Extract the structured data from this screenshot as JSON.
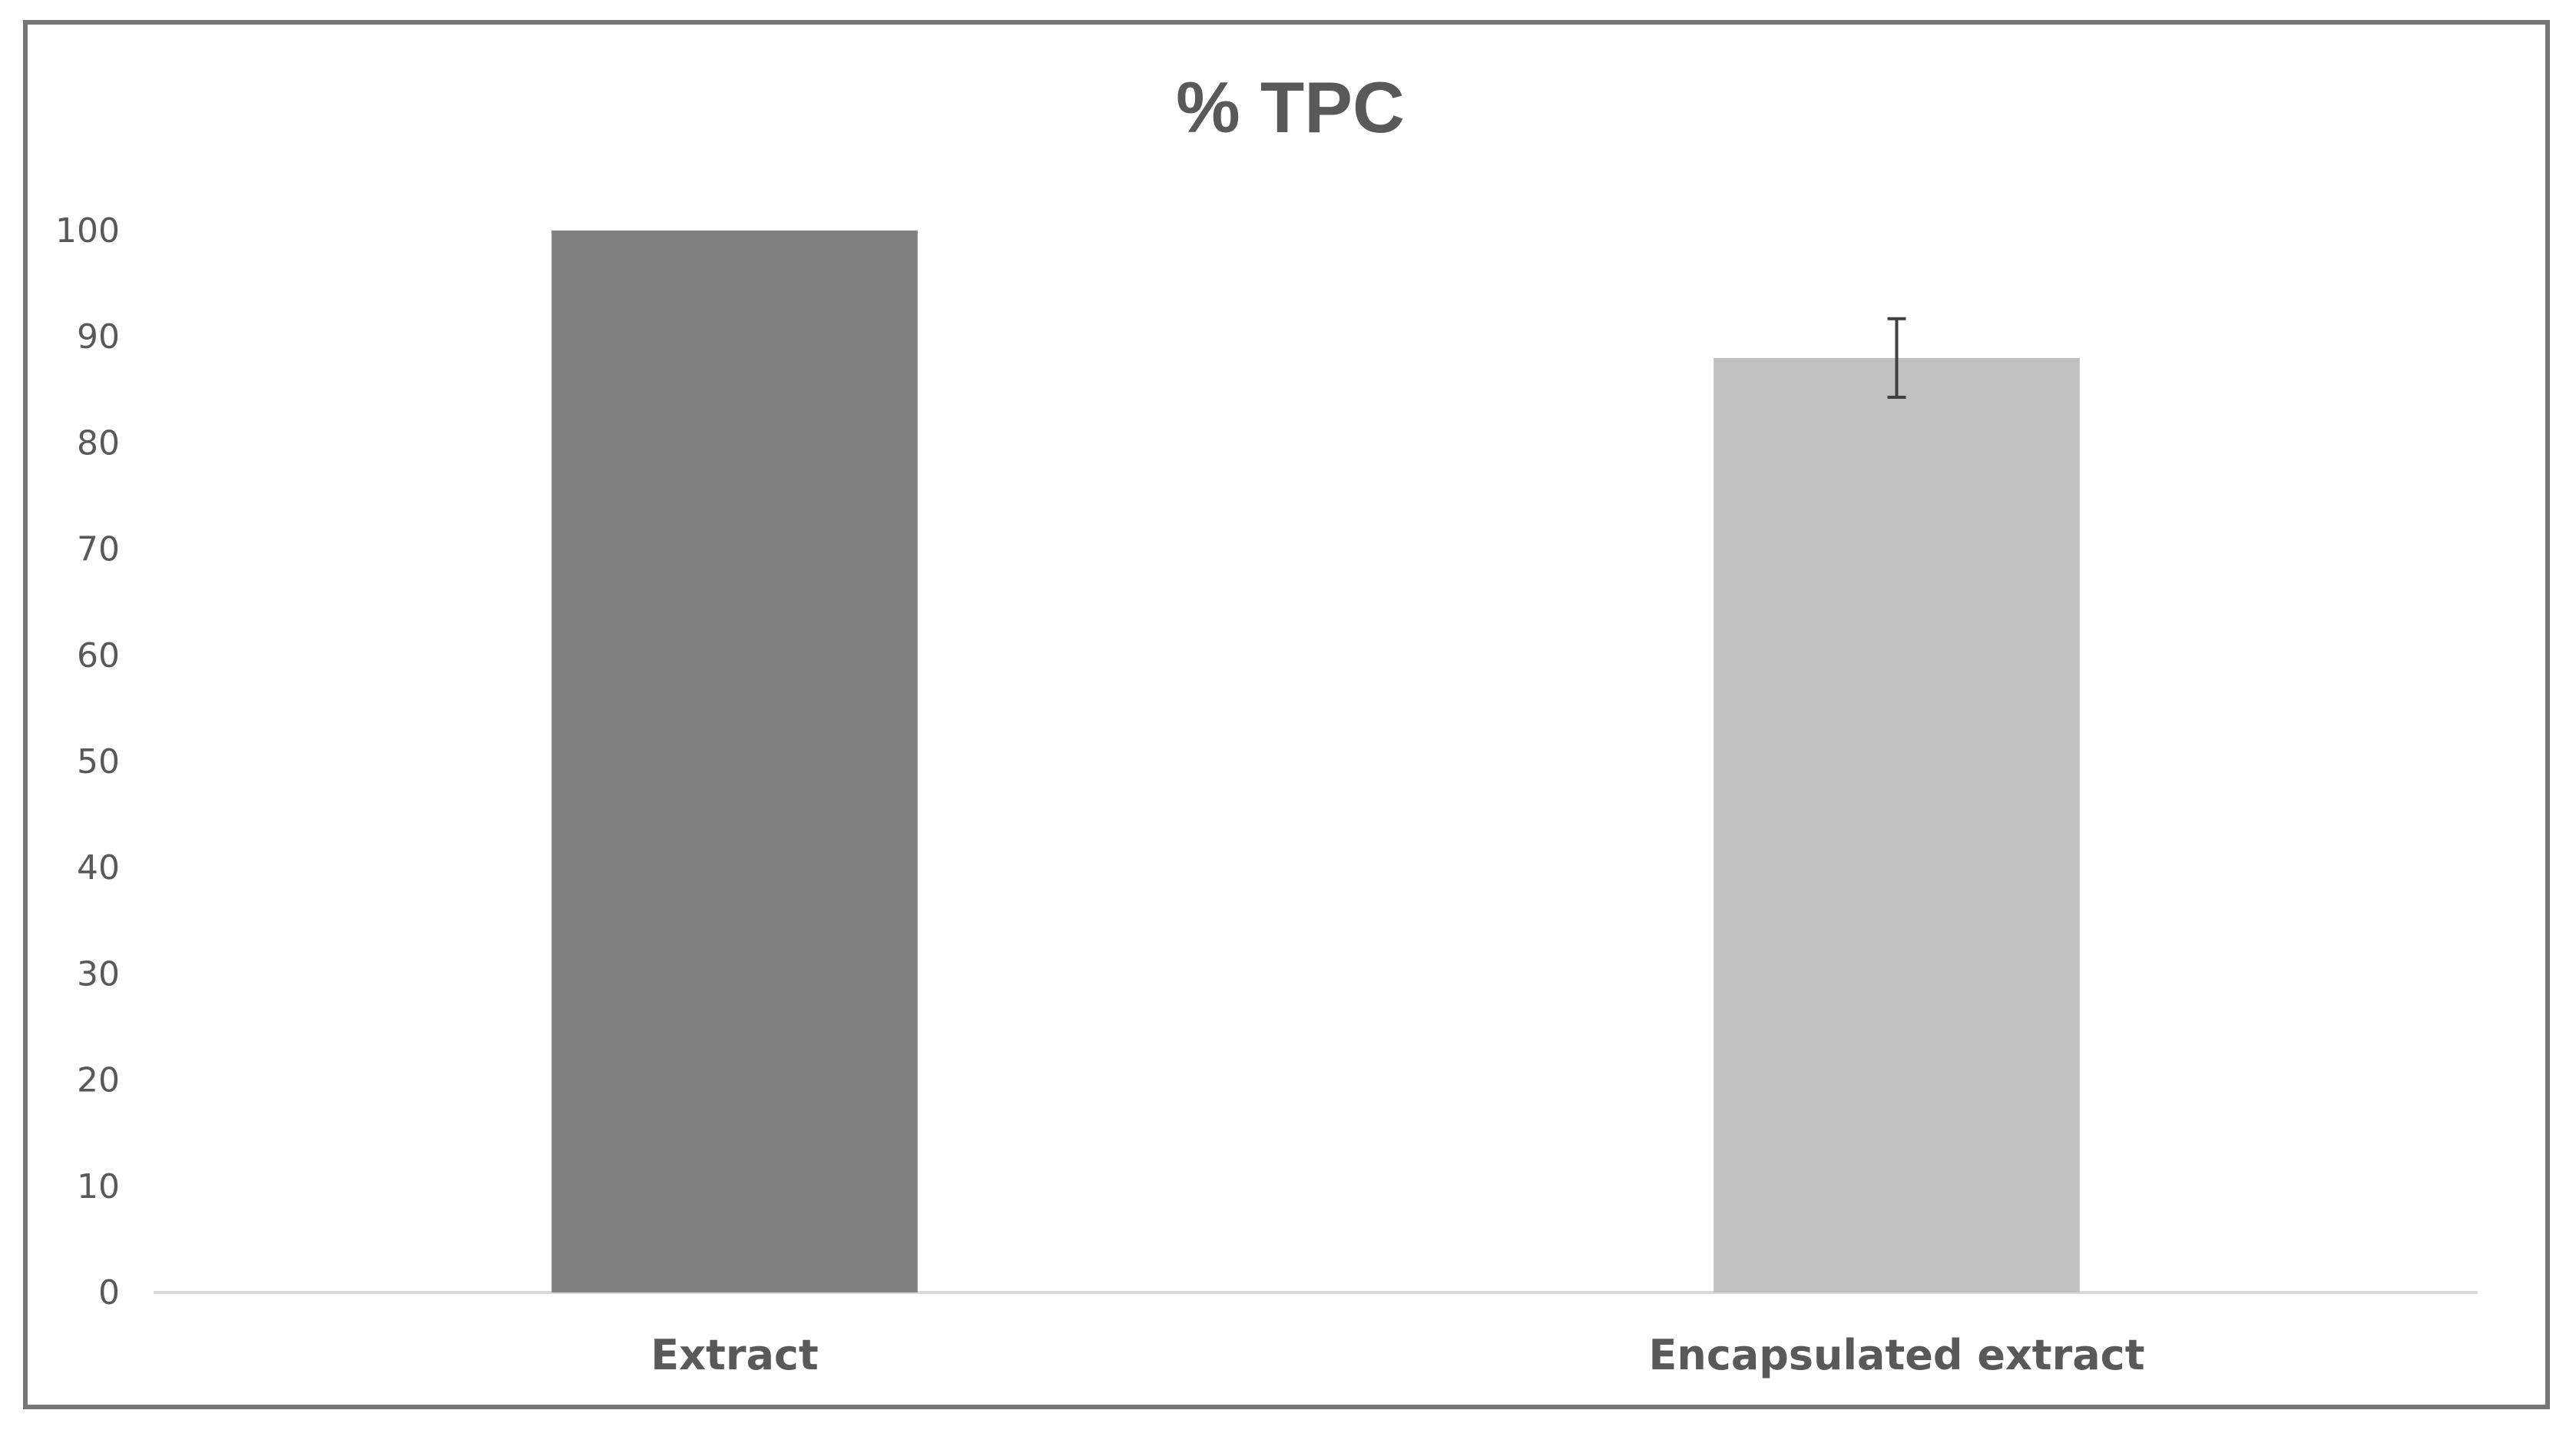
{
  "chart_data": {
    "type": "bar",
    "title": "% TPC",
    "xlabel": "",
    "ylabel": "",
    "categories": [
      "Extract",
      "Encapsulated extract"
    ],
    "values": [
      100,
      88
    ],
    "errors": [
      0,
      3.7
    ],
    "colors": [
      "#808080",
      "#c0c0c0"
    ],
    "ylim": [
      0,
      100
    ],
    "yticks": [
      0,
      10,
      20,
      30,
      40,
      50,
      60,
      70,
      80,
      90,
      100
    ],
    "grid": false,
    "legend": "none"
  }
}
